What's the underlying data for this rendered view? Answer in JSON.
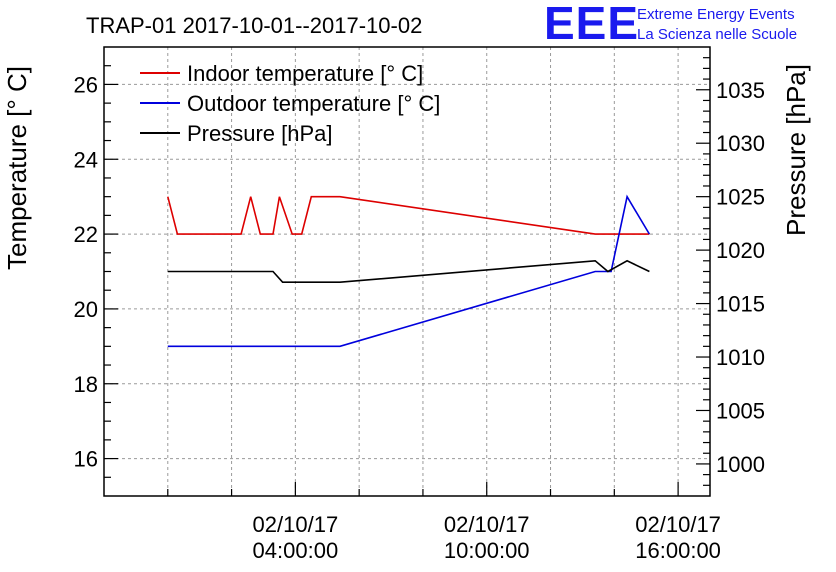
{
  "chart_data": {
    "type": "line",
    "title": "TRAP-01 2017-10-01--2017-10-02",
    "logo": {
      "mark": "EEE",
      "line1": "Extreme Energy Events",
      "line2": "La Scienza nelle Scuole"
    },
    "ylabel": "Temperature [° C]",
    "y2label": "Pressure [hPa]",
    "ylim": [
      15,
      27
    ],
    "y2lim": [
      997,
      1039
    ],
    "xlim": [
      -2,
      17
    ],
    "y_ticks": [
      16,
      18,
      20,
      22,
      24,
      26
    ],
    "y2_ticks": [
      1000,
      1005,
      1010,
      1015,
      1020,
      1025,
      1030,
      1035
    ],
    "x_ticks": [
      {
        "x": 4,
        "date": "02/10/17",
        "time": "04:00:00"
      },
      {
        "x": 10,
        "date": "02/10/17",
        "time": "10:00:00"
      },
      {
        "x": 16,
        "date": "02/10/17",
        "time": "16:00:00"
      }
    ],
    "grid": true,
    "legend_position": "top-left",
    "series": [
      {
        "name": "Indoor temperature [° C]",
        "axis": "left",
        "color": "#dd0000",
        "x": [
          0,
          0.3,
          2.3,
          2.6,
          2.9,
          3.3,
          3.5,
          3.9,
          4.2,
          4.5,
          5.4,
          13.4,
          13.9,
          15.1
        ],
        "y": [
          23,
          22,
          22,
          23,
          22,
          22,
          23,
          22,
          22,
          23,
          23,
          22,
          22,
          22
        ]
      },
      {
        "name": "Outdoor temperature [° C]",
        "axis": "left",
        "color": "#0000dd",
        "x": [
          0,
          5.4,
          13.4,
          13.9,
          14.4,
          15.1
        ],
        "y": [
          19,
          19,
          21,
          21,
          23,
          22
        ]
      },
      {
        "name": "Pressure [hPa]",
        "axis": "right",
        "color": "#000000",
        "x": [
          0,
          3.3,
          3.6,
          5.4,
          13.4,
          13.8,
          14.4,
          15.1
        ],
        "y": [
          1018,
          1018,
          1017,
          1017,
          1019,
          1018,
          1019,
          1018
        ]
      }
    ]
  }
}
